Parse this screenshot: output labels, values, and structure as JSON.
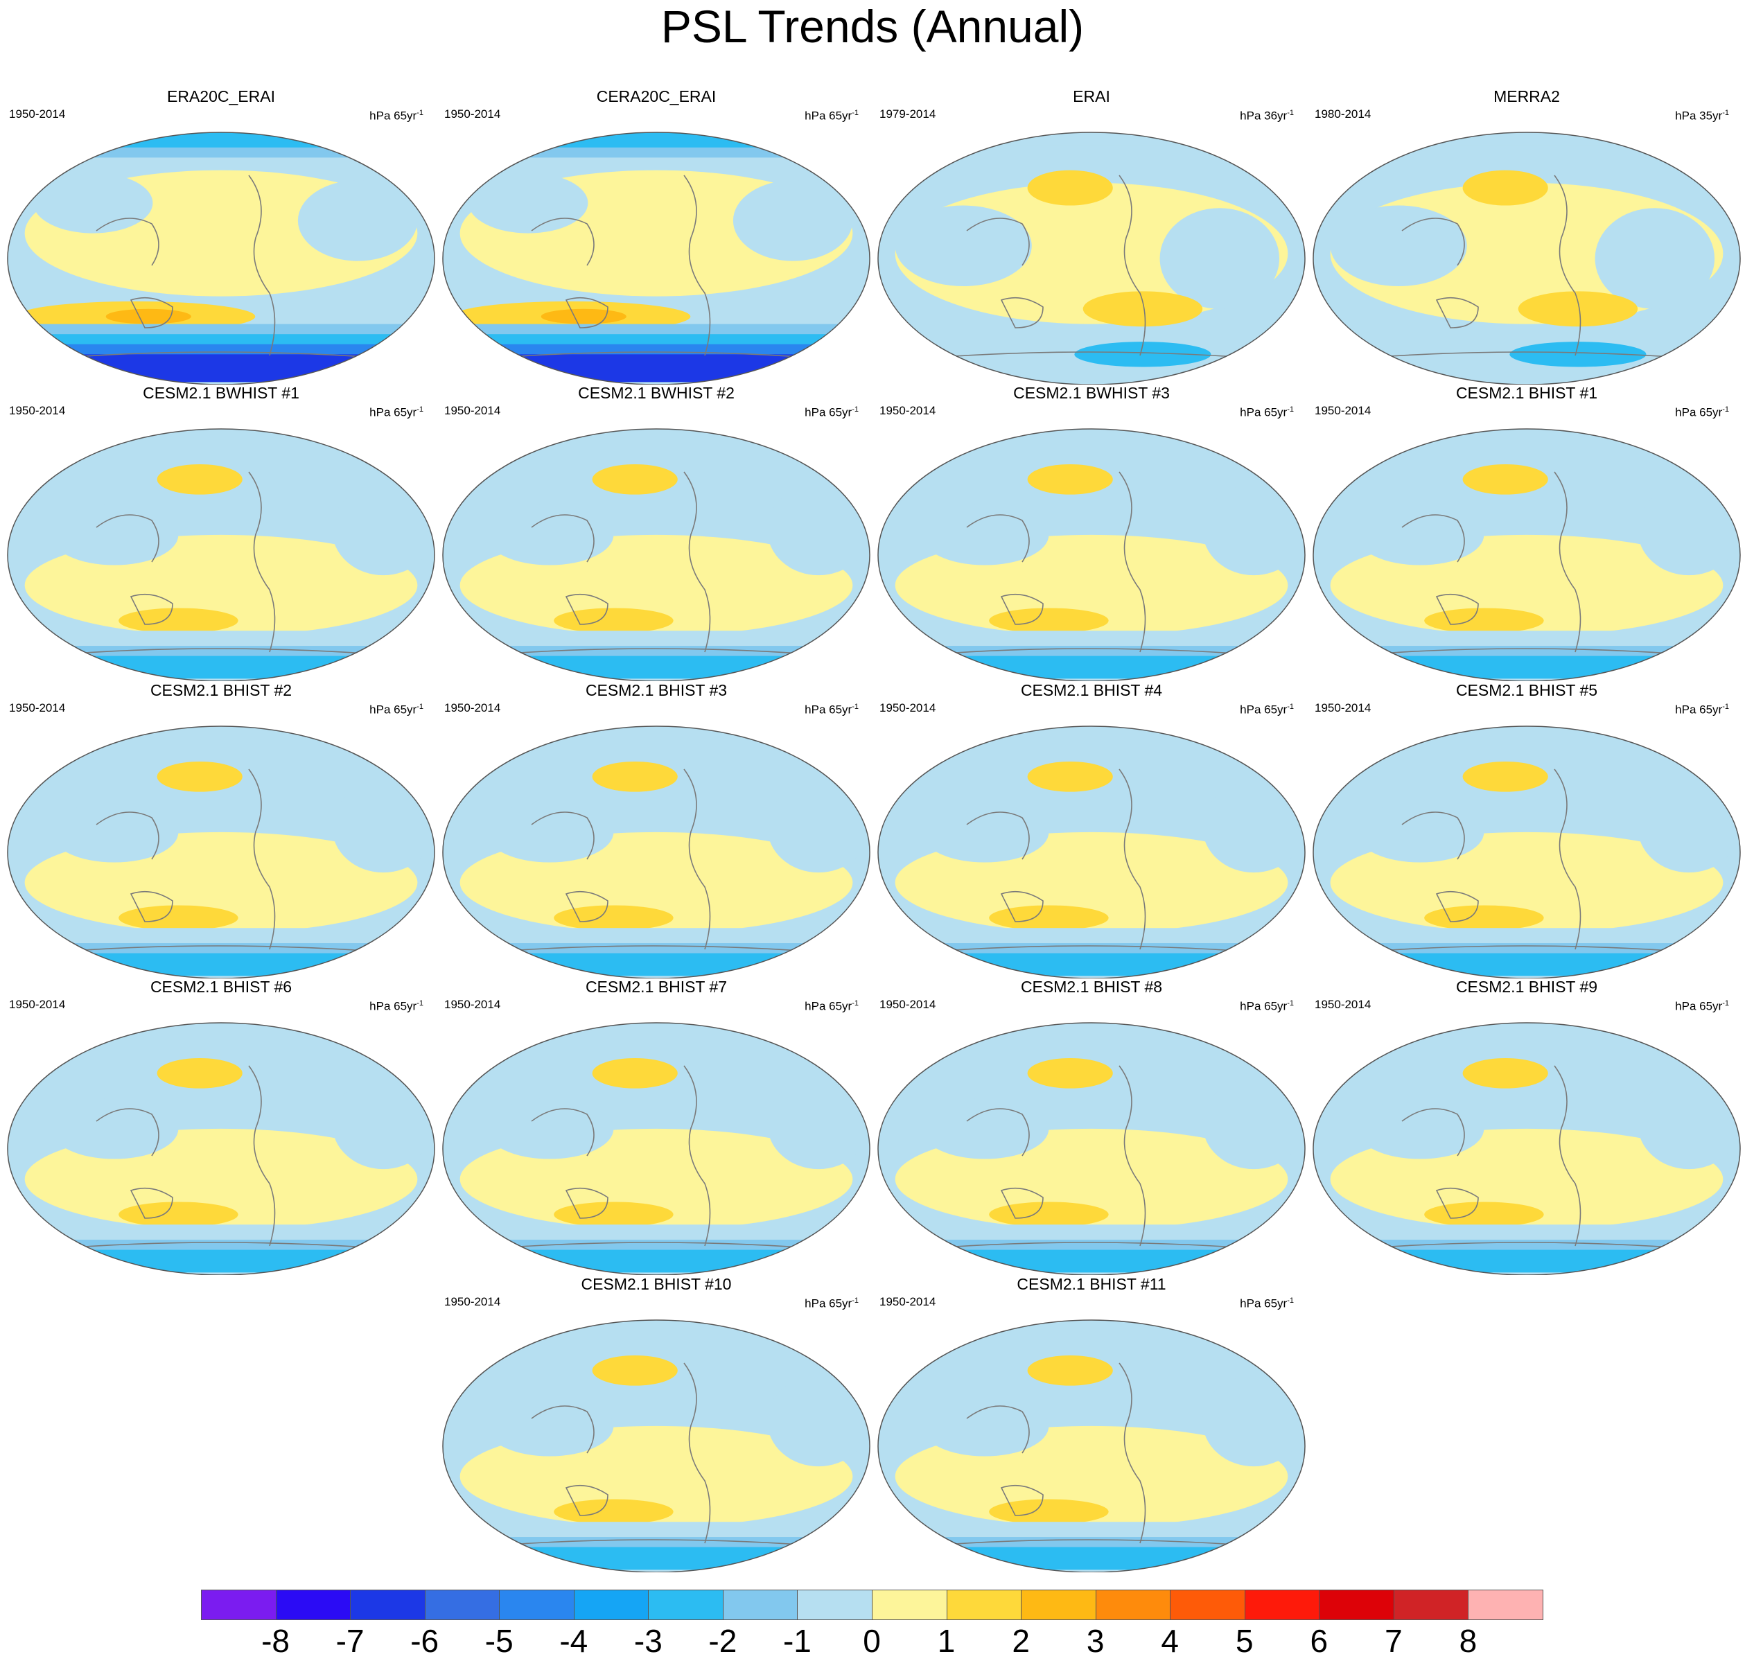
{
  "title": "PSL Trends (Annual)",
  "panels": [
    {
      "title": "ERA20C_ERAI",
      "period": "1950-2014",
      "unit": "hPa 65yr",
      "unit_exp": "-1",
      "style": "reanalysis20c"
    },
    {
      "title": "CERA20C_ERAI",
      "period": "1950-2014",
      "unit": "hPa 65yr",
      "unit_exp": "-1",
      "style": "reanalysis20c"
    },
    {
      "title": "ERAI",
      "period": "1979-2014",
      "unit": "hPa 36yr",
      "unit_exp": "-1",
      "style": "reanalysisSat"
    },
    {
      "title": "MERRA2",
      "period": "1980-2014",
      "unit": "hPa 35yr",
      "unit_exp": "-1",
      "style": "reanalysisSat"
    },
    {
      "title": "CESM2.1 BWHIST #1",
      "period": "1950-2014",
      "unit": "hPa 65yr",
      "unit_exp": "-1",
      "style": "model"
    },
    {
      "title": "CESM2.1 BWHIST #2",
      "period": "1950-2014",
      "unit": "hPa 65yr",
      "unit_exp": "-1",
      "style": "model"
    },
    {
      "title": "CESM2.1 BWHIST #3",
      "period": "1950-2014",
      "unit": "hPa 65yr",
      "unit_exp": "-1",
      "style": "model"
    },
    {
      "title": "CESM2.1 BHIST #1",
      "period": "1950-2014",
      "unit": "hPa 65yr",
      "unit_exp": "-1",
      "style": "model"
    },
    {
      "title": "CESM2.1 BHIST #2",
      "period": "1950-2014",
      "unit": "hPa 65yr",
      "unit_exp": "-1",
      "style": "model"
    },
    {
      "title": "CESM2.1 BHIST #3",
      "period": "1950-2014",
      "unit": "hPa 65yr",
      "unit_exp": "-1",
      "style": "model"
    },
    {
      "title": "CESM2.1 BHIST #4",
      "period": "1950-2014",
      "unit": "hPa 65yr",
      "unit_exp": "-1",
      "style": "model"
    },
    {
      "title": "CESM2.1 BHIST #5",
      "period": "1950-2014",
      "unit": "hPa 65yr",
      "unit_exp": "-1",
      "style": "model"
    },
    {
      "title": "CESM2.1 BHIST #6",
      "period": "1950-2014",
      "unit": "hPa 65yr",
      "unit_exp": "-1",
      "style": "model"
    },
    {
      "title": "CESM2.1 BHIST #7",
      "period": "1950-2014",
      "unit": "hPa 65yr",
      "unit_exp": "-1",
      "style": "model"
    },
    {
      "title": "CESM2.1 BHIST #8",
      "period": "1950-2014",
      "unit": "hPa 65yr",
      "unit_exp": "-1",
      "style": "model"
    },
    {
      "title": "CESM2.1 BHIST #9",
      "period": "1950-2014",
      "unit": "hPa 65yr",
      "unit_exp": "-1",
      "style": "model"
    },
    {
      "title": "CESM2.1 BHIST #10",
      "period": "1950-2014",
      "unit": "hPa 65yr",
      "unit_exp": "-1",
      "style": "model"
    },
    {
      "title": "CESM2.1 BHIST #11",
      "period": "1950-2014",
      "unit": "hPa 65yr",
      "unit_exp": "-1",
      "style": "model"
    }
  ],
  "colorbar": {
    "colors": [
      "#7b1cf0",
      "#2b0bf5",
      "#1c38e6",
      "#356ee3",
      "#2a86ef",
      "#15a5f5",
      "#2cbcf2",
      "#82c8ee",
      "#b6dff1",
      "#fdf59a",
      "#fed93a",
      "#feb914",
      "#fe8b0c",
      "#fe5b08",
      "#fe1a0a",
      "#dd0208",
      "#d02326",
      "#feb2b2"
    ],
    "labels": [
      "-8",
      "-7",
      "-6",
      "-5",
      "-4",
      "-3",
      "-2",
      "-1",
      "0",
      "1",
      "2",
      "3",
      "4",
      "5",
      "6",
      "7",
      "8"
    ]
  }
}
